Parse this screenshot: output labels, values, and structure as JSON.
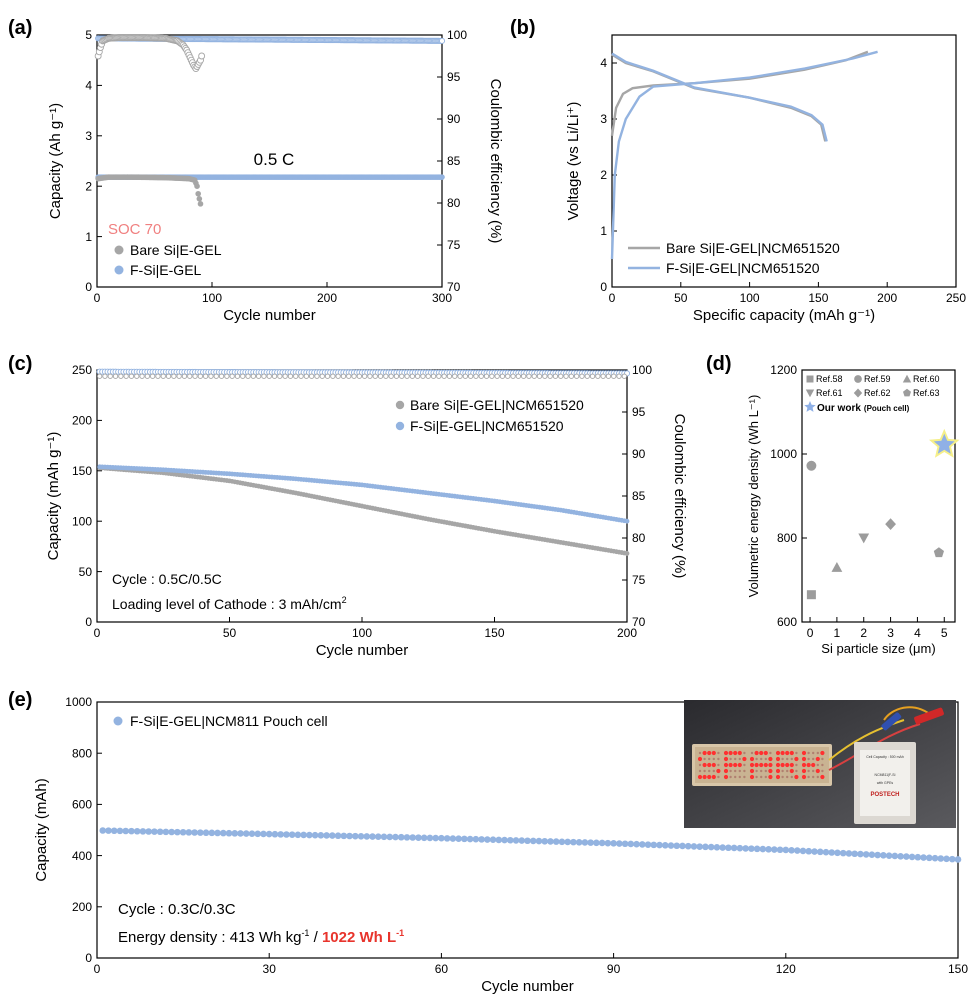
{
  "colors": {
    "bare": "#a6a6a6",
    "fsi": "#93b3e0",
    "soc": "#f08080",
    "highlight": "#e8342c",
    "star_fill": "#8fb0e6",
    "star_glow": "#f5ef8a"
  },
  "chart_data": [
    {
      "id": "a",
      "panel_label": "(a)",
      "type": "scatter",
      "xlabel": "Cycle number",
      "ylabel": "Capacity (Ah g⁻¹)",
      "y2label": "Coulombic efficiency (%)",
      "xlim": [
        0,
        300
      ],
      "ylim": [
        0,
        5
      ],
      "y2lim": [
        70,
        100
      ],
      "xticks": [
        0,
        100,
        200,
        300
      ],
      "yticks": [
        0,
        1,
        2,
        3,
        4,
        5
      ],
      "y2ticks": [
        70,
        75,
        80,
        85,
        90,
        95,
        100
      ],
      "annotations": [
        {
          "text": "0.5 C"
        },
        {
          "text": "SOC 70"
        }
      ],
      "legend": [
        {
          "text": "Bare Si|E-GEL",
          "marker": "bare"
        },
        {
          "text": "F-Si|E-GEL",
          "marker": "fsi"
        }
      ],
      "series": [
        {
          "name": "Bare Si|E-GEL",
          "axis": "left",
          "x_range": [
            1,
            90
          ],
          "values_desc": "~2.18 to 2.13 then drops to 1.65 at cycle 90",
          "points": [
            [
              1,
              2.15
            ],
            [
              10,
              2.18
            ],
            [
              30,
              2.18
            ],
            [
              60,
              2.17
            ],
            [
              80,
              2.15
            ],
            [
              85,
              2.12
            ],
            [
              87,
              2.0
            ],
            [
              88,
              1.85
            ],
            [
              89,
              1.75
            ],
            [
              90,
              1.65
            ]
          ]
        },
        {
          "name": "Bare Si|E-GEL CE",
          "axis": "right",
          "points": [
            [
              1,
              97.5
            ],
            [
              3,
              98.5
            ],
            [
              5,
              99.3
            ],
            [
              10,
              99.6
            ],
            [
              20,
              99.7
            ],
            [
              40,
              99.7
            ],
            [
              60,
              99.6
            ],
            [
              70,
              99.3
            ],
            [
              75,
              98.8
            ],
            [
              78,
              98.2
            ],
            [
              80,
              97.6
            ],
            [
              82,
              97.0
            ],
            [
              84,
              96.4
            ],
            [
              86,
              96.0
            ],
            [
              88,
              96.5
            ],
            [
              90,
              97.0
            ],
            [
              91,
              97.5
            ]
          ]
        },
        {
          "name": "F-Si|E-GEL",
          "axis": "left",
          "points": [
            [
              1,
              2.18
            ],
            [
              300,
              2.18
            ]
          ]
        },
        {
          "name": "F-Si|E-GEL CE",
          "axis": "right",
          "points": [
            [
              1,
              99.6
            ],
            [
              300,
              99.3
            ]
          ]
        }
      ]
    },
    {
      "id": "b",
      "panel_label": "(b)",
      "type": "line",
      "xlabel": "Specific capacity (mAh g⁻¹)",
      "ylabel": "Voltage (vs Li/Li⁺)",
      "xlim": [
        0,
        250
      ],
      "ylim": [
        0,
        4.5
      ],
      "xticks": [
        0,
        50,
        100,
        150,
        200,
        250
      ],
      "yticks": [
        0,
        1,
        2,
        3,
        4
      ],
      "legend": [
        {
          "text": "Bare Si|E-GEL|NCM651520",
          "color": "bare"
        },
        {
          "text": "F-Si|E-GEL|NCM651520",
          "color": "fsi"
        }
      ],
      "series": [
        {
          "name": "Bare Si charge",
          "color": "bare",
          "points": [
            [
              0,
              2.7
            ],
            [
              3,
              3.2
            ],
            [
              8,
              3.45
            ],
            [
              15,
              3.55
            ],
            [
              30,
              3.6
            ],
            [
              60,
              3.64
            ],
            [
              100,
              3.72
            ],
            [
              140,
              3.88
            ],
            [
              170,
              4.05
            ],
            [
              186,
              4.2
            ]
          ]
        },
        {
          "name": "Bare Si discharge",
          "color": "bare",
          "points": [
            [
              0,
              4.15
            ],
            [
              10,
              4.0
            ],
            [
              30,
              3.85
            ],
            [
              60,
              3.55
            ],
            [
              100,
              3.38
            ],
            [
              130,
              3.2
            ],
            [
              145,
              3.05
            ],
            [
              152,
              2.9
            ],
            [
              155,
              2.6
            ]
          ]
        },
        {
          "name": "F-Si charge",
          "color": "fsi",
          "points": [
            [
              0,
              0.5
            ],
            [
              2,
              2.0
            ],
            [
              5,
              2.6
            ],
            [
              10,
              3.0
            ],
            [
              20,
              3.4
            ],
            [
              30,
              3.58
            ],
            [
              60,
              3.64
            ],
            [
              100,
              3.74
            ],
            [
              140,
              3.9
            ],
            [
              175,
              4.08
            ],
            [
              193,
              4.2
            ]
          ]
        },
        {
          "name": "F-Si discharge",
          "color": "fsi",
          "points": [
            [
              0,
              4.17
            ],
            [
              10,
              4.02
            ],
            [
              30,
              3.86
            ],
            [
              60,
              3.56
            ],
            [
              100,
              3.38
            ],
            [
              130,
              3.22
            ],
            [
              145,
              3.07
            ],
            [
              153,
              2.9
            ],
            [
              156,
              2.6
            ]
          ]
        }
      ]
    },
    {
      "id": "c",
      "panel_label": "(c)",
      "type": "scatter",
      "xlabel": "Cycle number",
      "ylabel": "Capacity (mAh g⁻¹)",
      "y2label": "Coulombic efficiency (%)",
      "xlim": [
        0,
        200
      ],
      "ylim": [
        0,
        250
      ],
      "y2lim": [
        70,
        100
      ],
      "xticks": [
        0,
        50,
        100,
        150,
        200
      ],
      "yticks": [
        0,
        50,
        100,
        150,
        200,
        250
      ],
      "y2ticks": [
        70,
        75,
        80,
        85,
        90,
        95,
        100
      ],
      "annotations": [
        {
          "text": "Cycle : 0.5C/0.5C"
        },
        {
          "text": "Loading level of Cathode : 3 mAh/cm²"
        }
      ],
      "legend": [
        {
          "text": "Bare Si|E-GEL|NCM651520",
          "marker": "bare"
        },
        {
          "text": "F-Si|E-GEL|NCM651520",
          "marker": "fsi"
        }
      ],
      "series": [
        {
          "name": "Bare Si|E-GEL|NCM651520",
          "axis": "left",
          "points": [
            [
              1,
              153
            ],
            [
              25,
              148
            ],
            [
              50,
              140
            ],
            [
              75,
              128
            ],
            [
              100,
              115
            ],
            [
              125,
              102
            ],
            [
              150,
              90
            ],
            [
              175,
              79
            ],
            [
              200,
              68
            ]
          ]
        },
        {
          "name": "F-Si|E-GEL|NCM651520",
          "axis": "left",
          "points": [
            [
              1,
              154
            ],
            [
              25,
              151
            ],
            [
              50,
              147
            ],
            [
              75,
              142
            ],
            [
              100,
              136
            ],
            [
              125,
              128
            ],
            [
              150,
              120
            ],
            [
              175,
              111
            ],
            [
              200,
              100
            ]
          ]
        },
        {
          "name": "Bare CE",
          "axis": "right",
          "points": [
            [
              1,
              99.5
            ],
            [
              200,
              99.5
            ]
          ]
        },
        {
          "name": "F-Si CE",
          "axis": "right",
          "points": [
            [
              1,
              99.8
            ],
            [
              200,
              99.6
            ]
          ]
        }
      ]
    },
    {
      "id": "d",
      "panel_label": "(d)",
      "type": "scatter",
      "xlabel": "Si particle size (μm)",
      "ylabel": "Volumetric energy density (Wh L⁻¹)",
      "xlim": [
        -0.3,
        5.4
      ],
      "ylim": [
        600,
        1200
      ],
      "xticks": [
        0,
        1,
        2,
        3,
        4,
        5
      ],
      "yticks": [
        600,
        800,
        1000,
        1200
      ],
      "legend": [
        {
          "text": "Ref.58",
          "marker": "square"
        },
        {
          "text": "Ref.59",
          "marker": "circle"
        },
        {
          "text": "Ref.60",
          "marker": "triangle-up"
        },
        {
          "text": "Ref.61",
          "marker": "triangle-down"
        },
        {
          "text": "Ref.62",
          "marker": "diamond"
        },
        {
          "text": "Ref.63",
          "marker": "pentagon"
        },
        {
          "text": "Our work",
          "suffix": "(Pouch cell)",
          "marker": "star"
        }
      ],
      "points": [
        {
          "ref": "Ref.58",
          "x": 0.05,
          "y": 665,
          "marker": "square"
        },
        {
          "ref": "Ref.59",
          "x": 0.05,
          "y": 972,
          "marker": "circle"
        },
        {
          "ref": "Ref.60",
          "x": 1.0,
          "y": 730,
          "marker": "triangle-up"
        },
        {
          "ref": "Ref.61",
          "x": 2.0,
          "y": 800,
          "marker": "triangle-down"
        },
        {
          "ref": "Ref.62",
          "x": 3.0,
          "y": 833,
          "marker": "diamond"
        },
        {
          "ref": "Ref.63",
          "x": 4.8,
          "y": 765,
          "marker": "pentagon"
        },
        {
          "ref": "Our work",
          "x": 5.0,
          "y": 1022,
          "marker": "star"
        }
      ]
    },
    {
      "id": "e",
      "panel_label": "(e)",
      "type": "scatter",
      "xlabel": "Cycle number",
      "ylabel": "Capacity (mAh)",
      "xlim": [
        0,
        150
      ],
      "ylim": [
        0,
        1000
      ],
      "xticks": [
        0,
        30,
        60,
        90,
        120,
        150
      ],
      "yticks": [
        0,
        200,
        400,
        600,
        800,
        1000
      ],
      "legend": [
        {
          "text": "F-Si|E-GEL|NCM811 Pouch cell",
          "marker": "fsi"
        }
      ],
      "annotations": [
        {
          "text": "Cycle : 0.3C/0.3C"
        },
        {
          "text_prefix": "Energy density : 413 Wh kg⁻¹ / ",
          "text_highlight": "1022 Wh L⁻¹"
        }
      ],
      "series": [
        {
          "name": "F-Si|E-GEL|NCM811 Pouch cell",
          "points": [
            [
              1,
              498
            ],
            [
              30,
              484
            ],
            [
              60,
              468
            ],
            [
              90,
              448
            ],
            [
              120,
              422
            ],
            [
              150,
              385
            ]
          ]
        }
      ]
    }
  ],
  "photo": {
    "led_text": "SPARK",
    "cell_label_lines": [
      "Cell Capacity : 500 mAh",
      "NCM811|F-Si",
      "with GPEs",
      "POSTECH"
    ]
  }
}
